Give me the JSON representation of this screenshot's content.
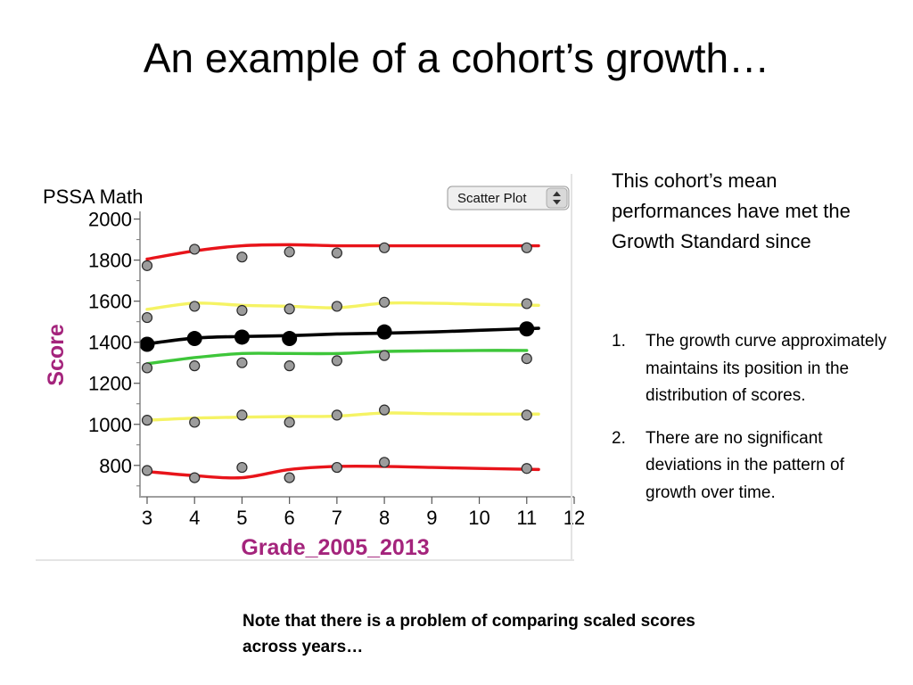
{
  "slide": {
    "title": "An example of  a cohort’s growth…",
    "description": "This cohort’s mean performances have met the Growth Standard since",
    "list_items": [
      {
        "number": "1.",
        "text": "The growth curve approximately maintains its position in the distribution of scores."
      },
      {
        "number": "2.",
        "text": "There are no significant deviations in the pattern of growth over time."
      }
    ],
    "footnote": "Note that there is a problem of comparing scaled scores across years…"
  },
  "chart_data": {
    "type": "scatter",
    "title": "PSSA Math",
    "xlabel": "Grade_2005_2013",
    "ylabel": "Score",
    "plot_type_selector": "Scatter Plot",
    "xlim": [
      2.85,
      12
    ],
    "ylim": [
      660,
      2020
    ],
    "x_ticks": [
      3,
      4,
      5,
      6,
      7,
      8,
      9,
      10,
      11,
      12
    ],
    "y_ticks": [
      800,
      1000,
      1200,
      1400,
      1600,
      1800,
      2000
    ],
    "points": [
      [
        3,
        1773
      ],
      [
        3,
        1520
      ],
      [
        3,
        1275
      ],
      [
        3,
        1020
      ],
      [
        3,
        775
      ],
      [
        4,
        1853
      ],
      [
        4,
        1575
      ],
      [
        4,
        1285
      ],
      [
        4,
        1010
      ],
      [
        4,
        740
      ],
      [
        5,
        1815
      ],
      [
        5,
        1555
      ],
      [
        5,
        1300
      ],
      [
        5,
        1045
      ],
      [
        5,
        790
      ],
      [
        6,
        1840
      ],
      [
        6,
        1562
      ],
      [
        6,
        1285
      ],
      [
        6,
        1010
      ],
      [
        6,
        740
      ],
      [
        7,
        1835
      ],
      [
        7,
        1575
      ],
      [
        7,
        1310
      ],
      [
        7,
        1045
      ],
      [
        7,
        790
      ],
      [
        8,
        1860
      ],
      [
        8,
        1595
      ],
      [
        8,
        1335
      ],
      [
        8,
        1070
      ],
      [
        8,
        815
      ],
      [
        11,
        1860
      ],
      [
        11,
        1588
      ],
      [
        11,
        1320
      ],
      [
        11,
        1045
      ],
      [
        11,
        785
      ]
    ],
    "mean_points": [
      [
        3,
        1390
      ],
      [
        4,
        1418
      ],
      [
        5,
        1425
      ],
      [
        6,
        1418
      ],
      [
        8,
        1450
      ],
      [
        11,
        1465
      ]
    ],
    "series": [
      {
        "color": "#e8141a",
        "x": [
          3,
          4,
          5,
          6,
          7,
          8,
          9,
          10,
          11.25
        ],
        "values": [
          1805,
          1845,
          1870,
          1875,
          1870,
          1870,
          1870,
          1870,
          1870
        ]
      },
      {
        "color": "#f5f364",
        "x": [
          3,
          4,
          5,
          6,
          7,
          8,
          9,
          10,
          11.25
        ],
        "values": [
          1560,
          1590,
          1580,
          1575,
          1568,
          1590,
          1590,
          1585,
          1580
        ]
      },
      {
        "color": "#000000",
        "x": [
          3,
          4,
          5,
          6,
          7,
          8,
          9,
          10,
          11.25
        ],
        "values": [
          1392,
          1420,
          1428,
          1432,
          1440,
          1444,
          1450,
          1458,
          1468
        ]
      },
      {
        "color": "#3ec63a",
        "x": [
          3,
          4,
          5,
          6,
          7,
          8,
          9,
          10,
          11
        ],
        "values": [
          1295,
          1325,
          1345,
          1345,
          1345,
          1355,
          1358,
          1360,
          1360
        ]
      },
      {
        "color": "#f5f364",
        "x": [
          3,
          4,
          5,
          6,
          7,
          8,
          9,
          10,
          11.25
        ],
        "values": [
          1020,
          1030,
          1035,
          1038,
          1040,
          1055,
          1052,
          1050,
          1050
        ]
      },
      {
        "color": "#e8141a",
        "x": [
          3,
          4,
          5,
          6,
          7,
          8,
          9,
          10,
          11.25
        ],
        "values": [
          770,
          750,
          740,
          780,
          795,
          795,
          790,
          785,
          780
        ]
      }
    ],
    "colors": {
      "axis_label": "#a4247c",
      "point_fill": "#9c9c9c",
      "mean_point": "#000000"
    }
  }
}
